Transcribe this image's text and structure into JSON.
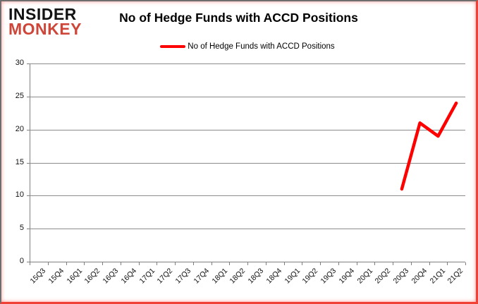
{
  "logo": {
    "line1": "INSIDER",
    "line2": "MONKEY"
  },
  "header": {
    "title": "No of Hedge Funds with ACCD Positions"
  },
  "legend": {
    "label": "No of Hedge Funds with ACCD Positions"
  },
  "colors": {
    "line": "#ff0000",
    "logo_monkey": "#ce4639",
    "grid": "#8c8c8c",
    "frame_red": "#ef4135"
  },
  "chart_data": {
    "type": "line",
    "title": "No of Hedge Funds with ACCD Positions",
    "categories": [
      "15Q3",
      "15Q4",
      "16Q1",
      "16Q2",
      "16Q3",
      "16Q4",
      "17Q1",
      "17Q2",
      "17Q3",
      "17Q4",
      "18Q1",
      "18Q2",
      "18Q3",
      "18Q4",
      "19Q1",
      "19Q2",
      "19Q3",
      "19Q4",
      "20Q1",
      "20Q2",
      "20Q3",
      "20Q4",
      "21Q1",
      "21Q2"
    ],
    "series": [
      {
        "name": "No of Hedge Funds with ACCD Positions",
        "color": "#ff0000",
        "values": [
          null,
          null,
          null,
          null,
          null,
          null,
          null,
          null,
          null,
          null,
          null,
          null,
          null,
          null,
          null,
          null,
          null,
          null,
          null,
          null,
          11,
          21,
          19,
          24
        ]
      }
    ],
    "xlabel": "",
    "ylabel": "",
    "ylim": [
      0,
      30
    ],
    "yticks": [
      0,
      5,
      10,
      15,
      20,
      25,
      30
    ],
    "grid": "horizontal-only",
    "legend_position": "top-center"
  }
}
